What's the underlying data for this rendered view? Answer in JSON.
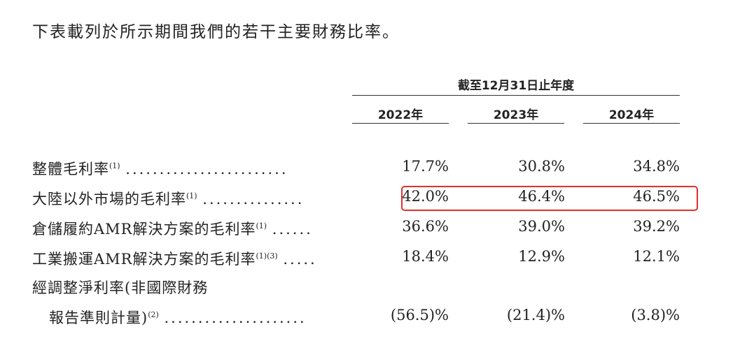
{
  "intro": "下表載列於所示期間我們的若干主要財務比率。",
  "table": {
    "period_header": "截至12月31日止年度",
    "years": [
      "2022年",
      "2023年",
      "2024年"
    ],
    "rows": [
      {
        "label": "整體毛利率",
        "note": "(1)",
        "dots": "........................",
        "values": [
          "17.7%",
          "30.8%",
          "34.8%"
        ]
      },
      {
        "label": "大陸以外市場的毛利率",
        "note": "(1)",
        "dots": "...............",
        "values": [
          "42.0%",
          "46.4%",
          "46.5%"
        ]
      },
      {
        "label": "倉儲履約AMR解決方案的毛利率",
        "note": "(1)",
        "dots": "......",
        "values": [
          "36.6%",
          "39.0%",
          "39.2%"
        ]
      },
      {
        "label": "工業搬運AMR解決方案的毛利率",
        "note": "(1)(3)",
        "dots": ".....",
        "values": [
          "18.4%",
          "12.9%",
          "12.1%"
        ]
      },
      {
        "label": "經調整淨利率(非國際財務",
        "note": "",
        "dots": "",
        "values": [
          "",
          "",
          ""
        ]
      },
      {
        "label": "報告準則計量)",
        "note": "(2)",
        "dots": ".....................",
        "values": [
          "(56.5)%",
          "(21.4)%",
          "(3.8)%"
        ]
      }
    ]
  },
  "highlight": {
    "row": "大陸以外市場的毛利率",
    "color": "#e0312b"
  }
}
